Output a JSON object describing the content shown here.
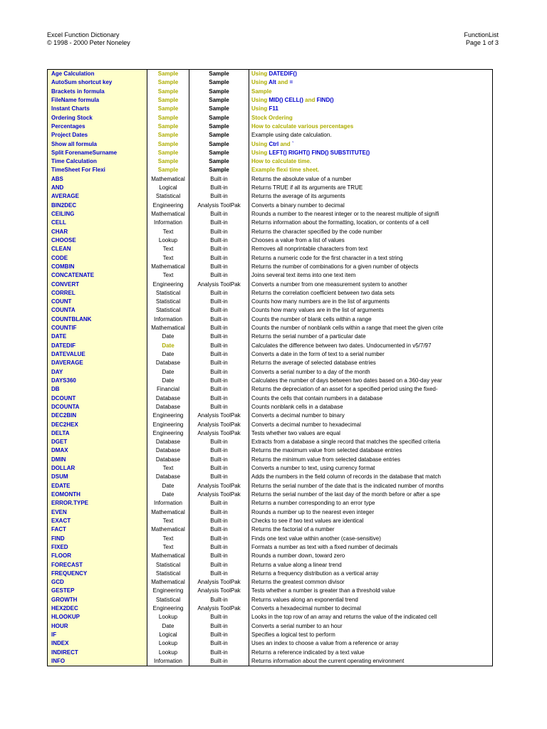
{
  "page": {
    "header_left_line1": "Excel Function Dictionary",
    "header_left_line2": "© 1998 - 2000 Peter Noneley",
    "header_right_line1": "FunctionList",
    "header_right_line2": "Page 1 of 3"
  },
  "colors": {
    "function_name_blue": "#0000CC",
    "sample_olive": "#ADAD00",
    "analysis_toolpak_green": "#008000",
    "name_column_bg": "#FFFFCC",
    "border": "#000000"
  },
  "table": {
    "rows": [
      {
        "name": "Age Calculation",
        "cat": "Sample",
        "type": "Sample",
        "desc": [
          [
            "Using ",
            "o"
          ],
          [
            "DATEDIF()",
            "b"
          ]
        ]
      },
      {
        "name": "AutoSum shortcut key",
        "cat": "Sample",
        "type": "Sample",
        "desc": [
          [
            "Using ",
            "o"
          ],
          [
            "Alt",
            "b"
          ],
          [
            " and ",
            "o"
          ],
          [
            "=",
            "b"
          ]
        ]
      },
      {
        "name": "Brackets in formula",
        "cat": "Sample",
        "type": "Sample",
        "desc": [
          [
            "Sample",
            "o"
          ]
        ]
      },
      {
        "name": "FileName formula",
        "cat": "Sample",
        "type": "Sample",
        "desc": [
          [
            "Using ",
            "o"
          ],
          [
            "MID() CELL()",
            "b"
          ],
          [
            " and ",
            "o"
          ],
          [
            "FIND()",
            "b"
          ]
        ]
      },
      {
        "name": "Instant Charts",
        "cat": "Sample",
        "type": "Sample",
        "desc": [
          [
            "Using ",
            "o"
          ],
          [
            "F11",
            "b"
          ]
        ]
      },
      {
        "name": "Ordering Stock",
        "cat": "Sample",
        "type": "Sample",
        "desc": [
          [
            "Stock Ordering",
            "o"
          ]
        ]
      },
      {
        "name": "Percentages",
        "cat": "Sample",
        "type": "Sample",
        "desc": [
          [
            "How to calculate various percentages",
            "o"
          ]
        ]
      },
      {
        "name": "Project Dates",
        "cat": "Sample",
        "type": "Sample",
        "desc": "Example using date calculation."
      },
      {
        "name": "Show all formula",
        "cat": "Sample",
        "type": "Sample",
        "desc": [
          [
            "Using ",
            "o"
          ],
          [
            "Ctrl",
            "b"
          ],
          [
            " and ",
            "o"
          ],
          [
            "`",
            "b"
          ]
        ]
      },
      {
        "name": "Split ForenameSurname",
        "cat": "Sample",
        "type": "Sample",
        "desc": [
          [
            "Using ",
            "o"
          ],
          [
            "LEFT() RIGHT() FIND() SUBSTITUTE()",
            "b"
          ]
        ]
      },
      {
        "name": "Time Calculation",
        "cat": "Sample",
        "type": "Sample",
        "desc": [
          [
            "How to calculate time.",
            "o"
          ]
        ]
      },
      {
        "name": "TimeSheet For Flexi",
        "cat": "Sample",
        "type": "Sample",
        "desc": [
          [
            "Example flexi time sheet.",
            "o"
          ]
        ]
      },
      {
        "name": "ABS",
        "cat": "Mathematical",
        "type": "Built-in",
        "desc": "Returns the absolute value of a number"
      },
      {
        "name": "AND",
        "cat": "Logical",
        "type": "Built-in",
        "desc": "Returns TRUE if all its arguments are TRUE"
      },
      {
        "name": "AVERAGE",
        "cat": "Statistical",
        "type": "Built-in",
        "desc": "Returns the average of its arguments"
      },
      {
        "name": "BIN2DEC",
        "cat": "Engineering",
        "type": "Analysis ToolPak",
        "desc": "Converts a binary number to decimal"
      },
      {
        "name": "CEILING",
        "cat": "Mathematical",
        "type": "Built-in",
        "desc": "Rounds a number to the nearest integer or to the nearest multiple of signifi"
      },
      {
        "name": "CELL",
        "cat": "Information",
        "type": "Built-in",
        "desc": "Returns information about the formatting, location, or contents of a cell"
      },
      {
        "name": "CHAR",
        "cat": "Text",
        "type": "Built-in",
        "desc": "Returns the character specified by the code number"
      },
      {
        "name": "CHOOSE",
        "cat": "Lookup",
        "type": "Built-in",
        "desc": "Chooses a value from a list of values"
      },
      {
        "name": "CLEAN",
        "cat": "Text",
        "type": "Built-in",
        "desc": "Removes all nonprintable characters from text"
      },
      {
        "name": "CODE",
        "cat": "Text",
        "type": "Built-in",
        "desc": "Returns a numeric code for the first character in a text string"
      },
      {
        "name": "COMBIN",
        "cat": "Mathematical",
        "type": "Built-in",
        "desc": "Returns the number of combinations for a given number of objects"
      },
      {
        "name": "CONCATENATE",
        "cat": "Text",
        "type": "Built-in",
        "desc": "Joins several text items into one text item"
      },
      {
        "name": "CONVERT",
        "cat": "Engineering",
        "type": "Analysis ToolPak",
        "desc": "Converts a number from one measurement system to another"
      },
      {
        "name": "CORREL",
        "cat": "Statistical",
        "type": "Built-in",
        "desc": "Returns the correlation coefficient between two data sets"
      },
      {
        "name": "COUNT",
        "cat": "Statistical",
        "type": "Built-in",
        "desc": "Counts how many numbers are in the list of arguments"
      },
      {
        "name": "COUNTA",
        "cat": "Statistical",
        "type": "Built-in",
        "desc": "Counts how many values are in the list of arguments"
      },
      {
        "name": "COUNTBLANK",
        "cat": "Information",
        "type": "Built-in",
        "desc": "Counts the number of blank cells within a range"
      },
      {
        "name": "COUNTIF",
        "cat": "Mathematical",
        "type": "Built-in",
        "desc": "Counts the number of nonblank cells within a range that meet the given crite"
      },
      {
        "name": "DATE",
        "cat": "Date",
        "type": "Built-in",
        "desc": "Returns the serial number of a particular date"
      },
      {
        "name": "DATEDIF",
        "cat": "Date",
        "catOlive": true,
        "type": "Built-in",
        "desc": "Calculates the difference between two dates. Undocumented in v5/7/97"
      },
      {
        "name": "DATEVALUE",
        "cat": "Date",
        "type": "Built-in",
        "desc": "Converts a date in the form of text to a serial number"
      },
      {
        "name": "DAVERAGE",
        "cat": "Database",
        "type": "Built-in",
        "desc": "Returns the average of selected database entries"
      },
      {
        "name": "DAY",
        "cat": "Date",
        "type": "Built-in",
        "desc": "Converts a serial number to a day of the month"
      },
      {
        "name": "DAYS360",
        "cat": "Date",
        "type": "Built-in",
        "desc": "Calculates the number of days between two dates based on a 360-day year"
      },
      {
        "name": "DB",
        "cat": "Financial",
        "type": "Built-in",
        "desc": "Returns the depreciation of an asset for a specified period using the fixed-"
      },
      {
        "name": "DCOUNT",
        "cat": "Database",
        "type": "Built-in",
        "desc": "Counts the cells that contain numbers in a database"
      },
      {
        "name": "DCOUNTA",
        "cat": "Database",
        "type": "Built-in",
        "desc": "Counts nonblank cells in a database"
      },
      {
        "name": "DEC2BIN",
        "cat": "Engineering",
        "type": "Analysis ToolPak",
        "desc": "Converts a decimal number to binary"
      },
      {
        "name": "DEC2HEX",
        "cat": "Engineering",
        "type": "Analysis ToolPak",
        "desc": "Converts a decimal number to hexadecimal"
      },
      {
        "name": "DELTA",
        "cat": "Engineering",
        "type": "Analysis ToolPak",
        "desc": "Tests whether two values are equal"
      },
      {
        "name": "DGET",
        "cat": "Database",
        "type": "Built-in",
        "desc": "Extracts from a database a single record that matches the specified criteria"
      },
      {
        "name": "DMAX",
        "cat": "Database",
        "type": "Built-in",
        "desc": "Returns the maximum value from selected database entries"
      },
      {
        "name": "DMIN",
        "cat": "Database",
        "type": "Built-in",
        "desc": "Returns the minimum value from selected database entries"
      },
      {
        "name": "DOLLAR",
        "cat": "Text",
        "type": "Built-in",
        "desc": "Converts a number to text, using currency format"
      },
      {
        "name": "DSUM",
        "cat": "Database",
        "type": "Built-in",
        "desc": "Adds the numbers in the field column of records in the database that match"
      },
      {
        "name": "EDATE",
        "cat": "Date",
        "type": "Analysis ToolPak",
        "desc": "Returns the serial number of the date that is the indicated number of months"
      },
      {
        "name": "EOMONTH",
        "cat": "Date",
        "type": "Analysis ToolPak",
        "desc": "Returns the serial number of the last day of the month before or after a spe"
      },
      {
        "name": "ERROR.TYPE",
        "cat": "Information",
        "type": "Built-in",
        "desc": "Returns a number corresponding to an error type"
      },
      {
        "name": "EVEN",
        "cat": "Mathematical",
        "type": "Built-in",
        "desc": "Rounds a number up to the nearest even integer"
      },
      {
        "name": "EXACT",
        "cat": "Text",
        "type": "Built-in",
        "desc": "Checks to see if two text values are identical"
      },
      {
        "name": "FACT",
        "cat": "Mathematical",
        "type": "Built-in",
        "desc": "Returns the factorial of a number"
      },
      {
        "name": "FIND",
        "cat": "Text",
        "type": "Built-in",
        "desc": "Finds one text value within another (case-sensitive)"
      },
      {
        "name": "FIXED",
        "cat": "Text",
        "type": "Built-in",
        "desc": "Formats a number as text with a fixed number of decimals"
      },
      {
        "name": "FLOOR",
        "cat": "Mathematical",
        "type": "Built-in",
        "desc": "Rounds a number down, toward zero"
      },
      {
        "name": "FORECAST",
        "cat": "Statistical",
        "type": "Built-in",
        "desc": "Returns a value along a linear trend"
      },
      {
        "name": "FREQUENCY",
        "cat": "Statistical",
        "type": "Built-in",
        "desc": "Returns a frequency distribution as a vertical array"
      },
      {
        "name": "GCD",
        "cat": "Mathematical",
        "type": "Analysis ToolPak",
        "desc": "Returns the greatest common divisor"
      },
      {
        "name": "GESTEP",
        "cat": "Engineering",
        "type": "Analysis ToolPak",
        "desc": "Tests whether a number is greater than a threshold value"
      },
      {
        "name": "GROWTH",
        "cat": "Statistical",
        "type": "Built-in",
        "desc": "Returns values along an exponential trend"
      },
      {
        "name": "HEX2DEC",
        "cat": "Engineering",
        "type": "Analysis ToolPak",
        "desc": "Converts a hexadecimal number to decimal"
      },
      {
        "name": "HLOOKUP",
        "cat": "Lookup",
        "type": "Built-in",
        "desc": "Looks in the top row of an array and returns the value of the indicated cell"
      },
      {
        "name": "HOUR",
        "cat": "Date",
        "type": "Built-in",
        "desc": "Converts a serial number to an hour"
      },
      {
        "name": "IF",
        "cat": "Logical",
        "type": "Built-in",
        "desc": "Specifies a logical test to perform"
      },
      {
        "name": "INDEX",
        "cat": "Lookup",
        "type": "Built-in",
        "desc": "Uses an index to choose a value from a reference or array"
      },
      {
        "name": "INDIRECT",
        "cat": "Lookup",
        "type": "Built-in",
        "desc": "Returns a reference indicated by a text value"
      },
      {
        "name": "INFO",
        "cat": "Information",
        "type": "Built-in",
        "desc": "Returns information about the current operating environment"
      }
    ]
  }
}
